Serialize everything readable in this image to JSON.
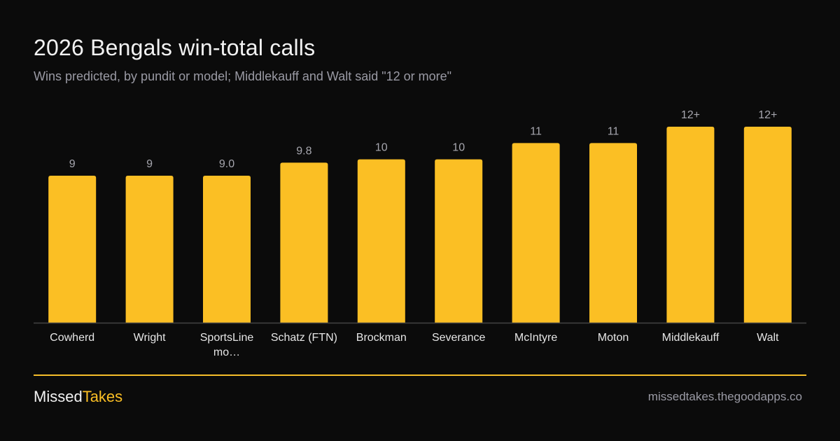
{
  "title": "2026 Bengals win-total calls",
  "subtitle": "Wins predicted, by pundit or model; Middlekauff  and Walt said \"12 or more\"",
  "brand": {
    "part1": "Missed",
    "part2": "Takes"
  },
  "site": "missedtakes.thegoodapps.co",
  "colors": {
    "bar": "#fbbf24",
    "background": "#0b0b0b",
    "axis": "#444444",
    "accent_line": "#f5bd2a"
  },
  "chart_data": {
    "type": "bar",
    "title": "2026 Bengals win-total calls",
    "subtitle": "Wins predicted, by pundit or model; Middlekauff  and Walt said \"12 or more\"",
    "xlabel": "",
    "ylabel": "",
    "categories": [
      "Cowherd",
      "Wright",
      "SportsLine mo…",
      "Schatz (FTN)",
      "Brockman",
      "Severance",
      "McIntyre",
      "Moton",
      "Middlekauff",
      "Walt"
    ],
    "values": [
      9,
      9,
      9.0,
      9.8,
      10,
      10,
      11,
      11,
      12,
      12
    ],
    "value_labels": [
      "9",
      "9",
      "9.0",
      "9.8",
      "10",
      "10",
      "11",
      "11",
      "12+",
      "12+"
    ],
    "ylim": [
      0,
      12
    ],
    "grid": false,
    "legend": "none"
  }
}
